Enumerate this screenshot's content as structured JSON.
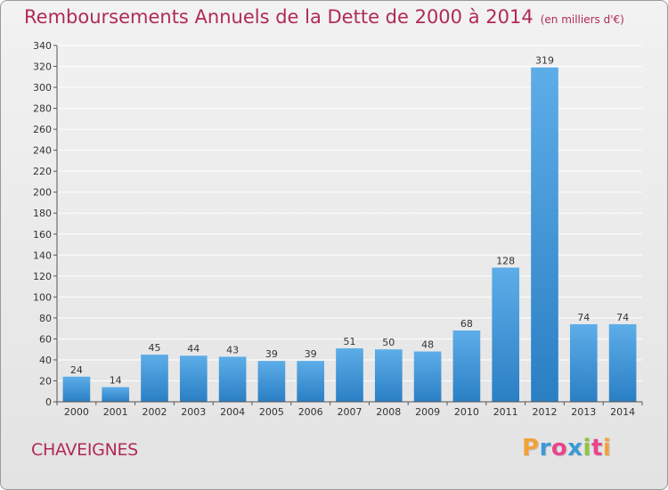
{
  "title": "Remboursements Annuels de la Dette de 2000 à 2014",
  "subtitle": "(en milliers d'€)",
  "commune": "CHAVEIGNES",
  "logo": {
    "text": "Proxiti",
    "colors": [
      "#f2a13a",
      "#3a9ad8",
      "#e8458b",
      "#3a9ad8",
      "#8cc63e",
      "#e8458b",
      "#f2a13a"
    ]
  },
  "colors": {
    "bar_light": "#5dade8",
    "bar_dark": "#2a7fc4",
    "title": "#b02a55",
    "grid": "#ffffff"
  },
  "chart_data": {
    "type": "bar",
    "categories": [
      "2000",
      "2001",
      "2002",
      "2003",
      "2004",
      "2005",
      "2006",
      "2007",
      "2008",
      "2009",
      "2010",
      "2011",
      "2012",
      "2013",
      "2014"
    ],
    "values": [
      24,
      14,
      45,
      44,
      43,
      39,
      39,
      51,
      50,
      48,
      68,
      128,
      319,
      74,
      74
    ],
    "ylim": [
      0,
      340
    ],
    "yticks": [
      0,
      20,
      40,
      60,
      80,
      100,
      120,
      140,
      160,
      180,
      200,
      220,
      240,
      260,
      280,
      300,
      320,
      340
    ],
    "grid": true
  }
}
